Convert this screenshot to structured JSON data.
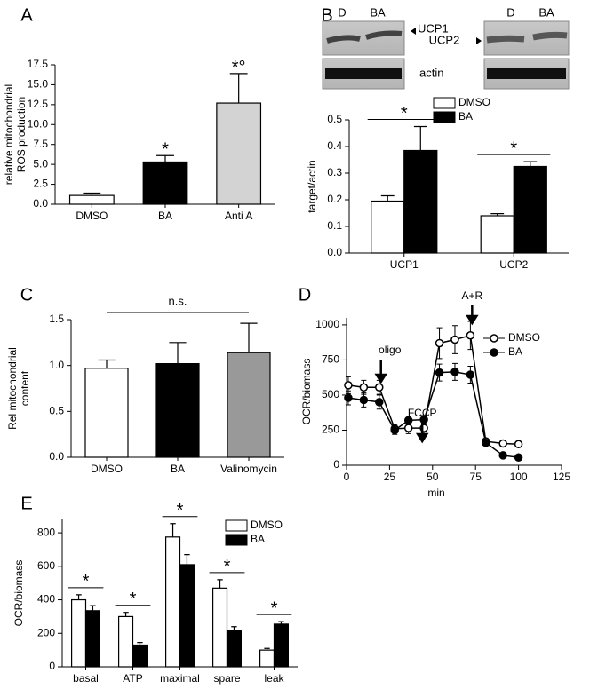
{
  "chart_data": [
    {
      "type": "bar",
      "panel": "A",
      "ylabel": [
        "relative mitochondrial",
        "ROS production"
      ],
      "categories": [
        "DMSO",
        "BA",
        "Anti A"
      ],
      "values": [
        1.1,
        5.3,
        12.7
      ],
      "errors": [
        0.3,
        0.8,
        3.7
      ],
      "colors": [
        "#ffffff",
        "#000000",
        "#d3d3d3"
      ],
      "ylim": [
        0,
        17.5
      ],
      "yticks": [
        {
          "value": 0,
          "label": "0.0"
        },
        2.5,
        {
          "value": 5,
          "label": "5.0"
        },
        7.5,
        {
          "value": 10,
          "label": "10.0"
        },
        12.5,
        {
          "value": 15,
          "label": "15.0"
        },
        17.5
      ],
      "stars": [
        null,
        "*",
        "*°"
      ]
    },
    {
      "type": "bar",
      "panel": "B",
      "blot_labels": [
        "D",
        "BA",
        "UCP1",
        "UCP2",
        "actin",
        "D",
        "BA"
      ],
      "ylabel": "target/actin",
      "categories": [
        "UCP1",
        "UCP2"
      ],
      "series": [
        {
          "name": "DMSO",
          "color": "#ffffff",
          "values": [
            0.195,
            0.14
          ],
          "errors": [
            0.02,
            0.008
          ]
        },
        {
          "name": "BA",
          "color": "#000000",
          "values": [
            0.385,
            0.325
          ],
          "errors": [
            0.09,
            0.018
          ]
        }
      ],
      "ylim": [
        0,
        0.5
      ],
      "yticks": [
        {
          "value": 0,
          "label": "0.0"
        },
        0.1,
        0.2,
        0.3,
        0.4,
        0.5
      ],
      "stars": [
        "*",
        "*"
      ],
      "star_lines": true,
      "legend": "upper right"
    },
    {
      "type": "bar",
      "panel": "C",
      "ylabel": [
        "Rel mitochondrial",
        "content"
      ],
      "categories": [
        "DMSO",
        "BA",
        "Valinomycin"
      ],
      "values": [
        0.97,
        1.02,
        1.14
      ],
      "errors": [
        0.09,
        0.23,
        0.32
      ],
      "colors": [
        "#ffffff",
        "#000000",
        "#999999"
      ],
      "ylim": [
        0,
        1.5
      ],
      "yticks": [
        {
          "value": 0,
          "label": "0.0"
        },
        0.5,
        {
          "value": 1,
          "label": "1.0"
        },
        1.5
      ],
      "span_annotation": "n.s."
    },
    {
      "type": "line",
      "panel": "D",
      "xlabel": "min",
      "ylabel": "OCR/biomass",
      "x": [
        1,
        10,
        19,
        28,
        36,
        45,
        54,
        63,
        72,
        81,
        91,
        100
      ],
      "series": [
        {
          "name": "DMSO",
          "color": "#000000",
          "marker": "open",
          "values": [
            570,
            555,
            555,
            260,
            265,
            265,
            870,
            895,
            925,
            170,
            155,
            150
          ],
          "errors": [
            60,
            50,
            50,
            30,
            40,
            40,
            110,
            100,
            100,
            10,
            10,
            10
          ]
        },
        {
          "name": "BA",
          "color": "#000000",
          "marker": "filled",
          "values": [
            480,
            465,
            450,
            250,
            320,
            325,
            660,
            665,
            645,
            160,
            70,
            55
          ],
          "errors": [
            50,
            50,
            50,
            30,
            30,
            30,
            60,
            60,
            60,
            10,
            10,
            10
          ]
        }
      ],
      "annotations": [
        {
          "text": "oligo",
          "x": 20
        },
        {
          "text": "FCCP",
          "x": 44
        },
        {
          "text": "A+R",
          "x": 73
        }
      ],
      "xlim": [
        0,
        125
      ],
      "xticks": [
        0,
        25,
        50,
        75,
        100,
        125
      ],
      "ylim": [
        0,
        1050
      ],
      "yticks": [
        0,
        250,
        500,
        750,
        1000
      ],
      "legend": "upper right"
    },
    {
      "type": "bar",
      "panel": "E",
      "ylabel": "OCR/biomass",
      "categories": [
        "basal",
        "ATP",
        "maximal",
        "spare",
        "leak"
      ],
      "series": [
        {
          "name": "DMSO",
          "color": "#ffffff",
          "values": [
            400,
            300,
            775,
            470,
            100
          ],
          "errors": [
            30,
            25,
            80,
            50,
            10
          ]
        },
        {
          "name": "BA",
          "color": "#000000",
          "values": [
            335,
            130,
            610,
            215,
            255
          ],
          "errors": [
            30,
            15,
            60,
            25,
            15
          ]
        }
      ],
      "ylim": [
        0,
        880
      ],
      "yticks": [
        0,
        200,
        400,
        600,
        800
      ],
      "stars": [
        "*",
        "*",
        "*",
        "*",
        "*"
      ],
      "star_lines": true,
      "legend": "upper right"
    }
  ]
}
